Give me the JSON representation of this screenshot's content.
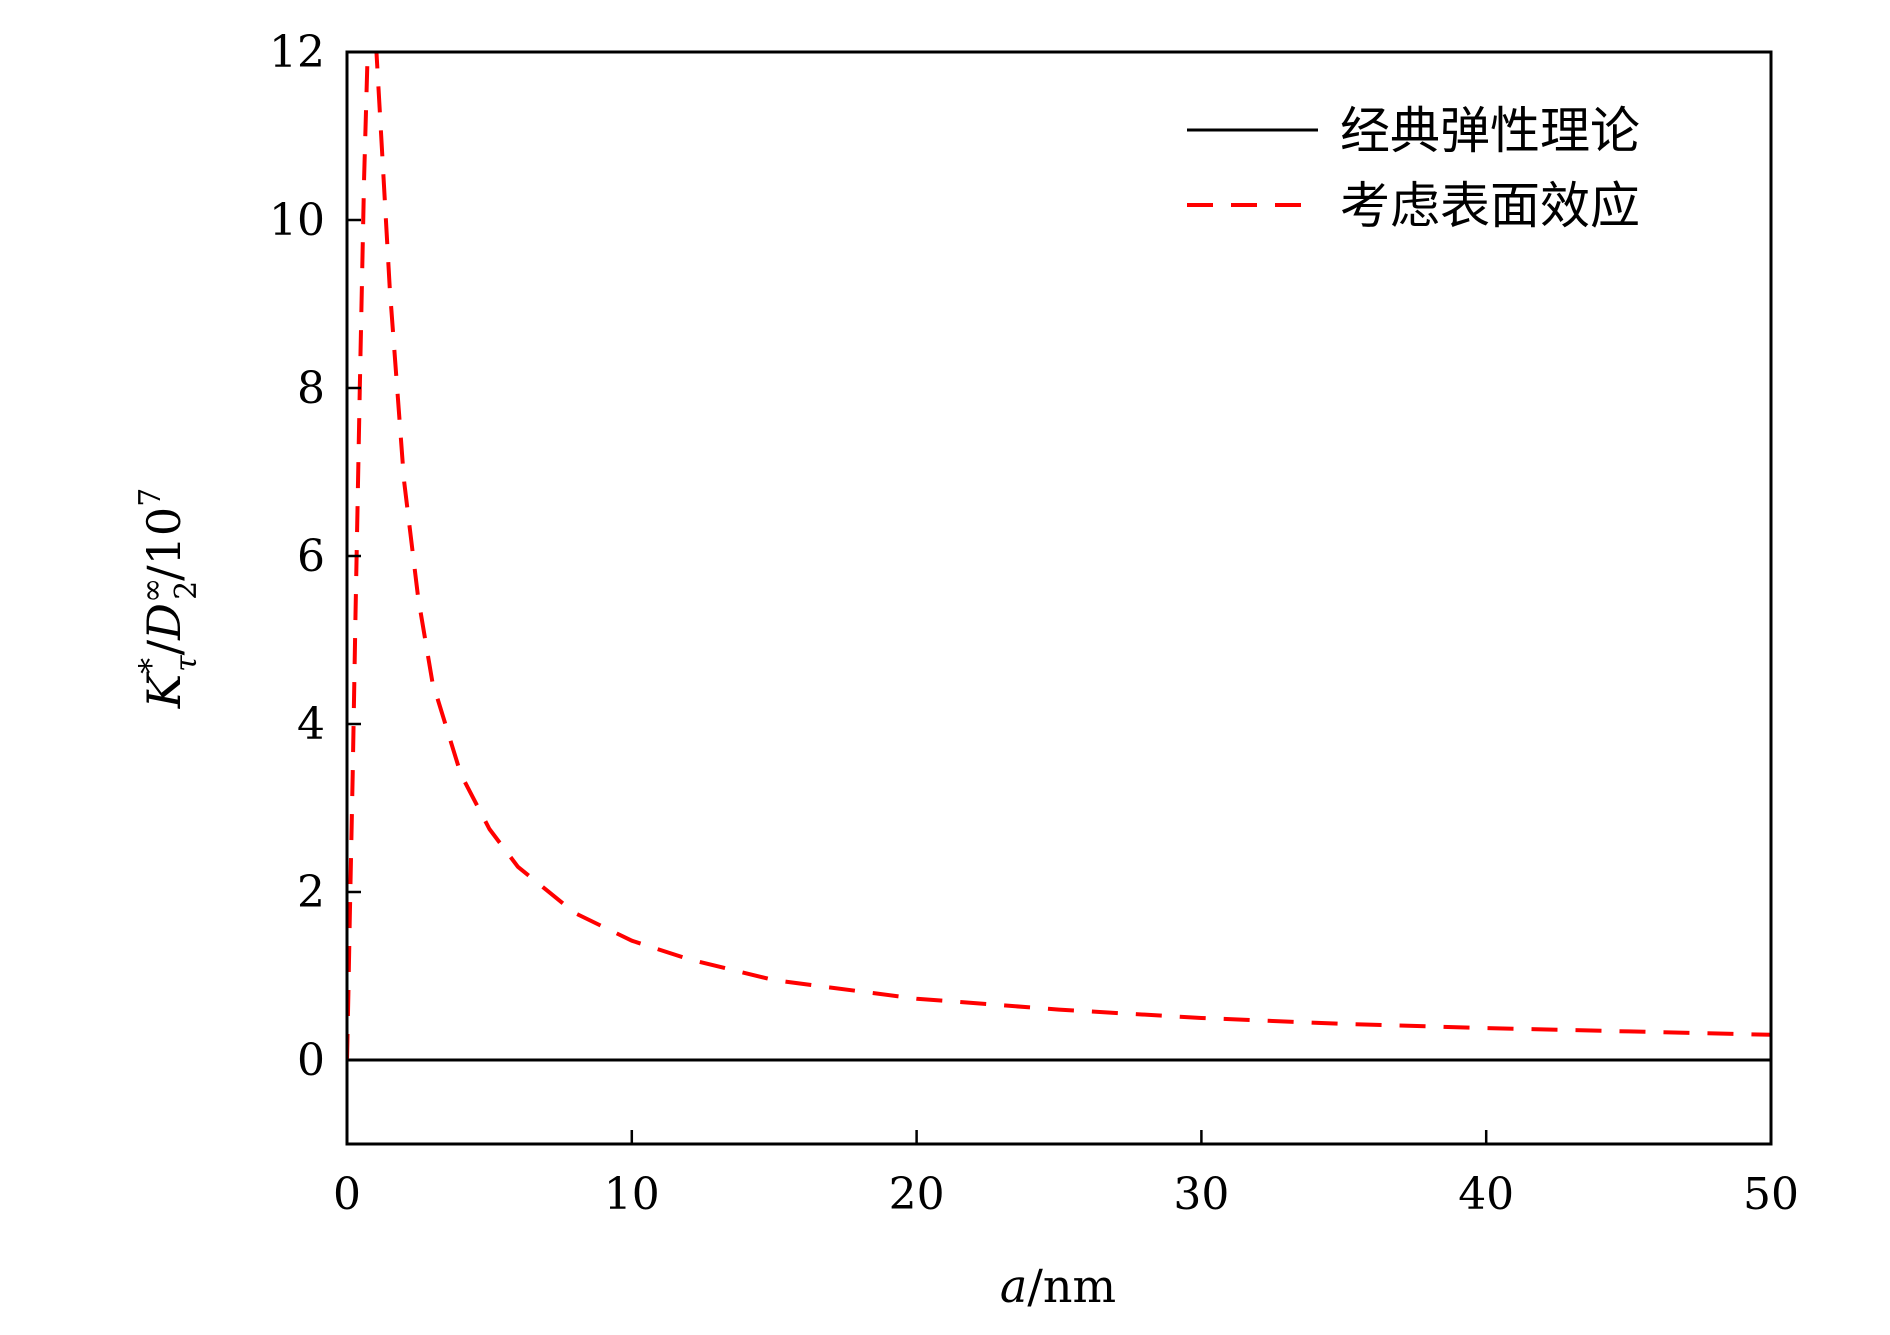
{
  "chart_data": {
    "type": "line",
    "xlabel": "a/nm",
    "ylabel": "K*τ/D∞2/107",
    "xlim": [
      0,
      50
    ],
    "ylim": [
      -1,
      12
    ],
    "x_ticks": [
      0,
      10,
      20,
      30,
      40,
      50
    ],
    "y_ticks": [
      0,
      2,
      4,
      6,
      8,
      10,
      12
    ],
    "x_tick_labels": [
      "0",
      "10",
      "20",
      "30",
      "40",
      "50"
    ],
    "y_tick_labels": [
      "0",
      "2",
      "4",
      "6",
      "8",
      "10",
      "12"
    ],
    "grid": false,
    "legend_position": "top-right",
    "series": [
      {
        "name": "经典弹性理论",
        "color": "#000000",
        "style": "solid",
        "x": [
          0,
          50
        ],
        "y": [
          0,
          0
        ]
      },
      {
        "name": "考虑表面效应",
        "color": "#ff0000",
        "style": "dashed",
        "x": [
          0,
          0.05,
          0.1,
          0.2,
          0.3,
          0.45,
          0.6,
          0.75,
          0.9,
          1.0,
          1.2,
          1.5,
          2.0,
          2.5,
          3.0,
          4.0,
          5.0,
          6.0,
          8.0,
          10,
          12,
          15,
          20,
          25,
          30,
          35,
          40,
          45,
          50
        ],
        "y": [
          0,
          0.8,
          1.7,
          3.4,
          5.3,
          8.0,
          10.5,
          12.3,
          12.6,
          12.2,
          11.0,
          9.2,
          6.9,
          5.5,
          4.5,
          3.4,
          2.75,
          2.3,
          1.75,
          1.42,
          1.2,
          0.95,
          0.73,
          0.6,
          0.5,
          0.43,
          0.38,
          0.34,
          0.3
        ]
      }
    ]
  }
}
